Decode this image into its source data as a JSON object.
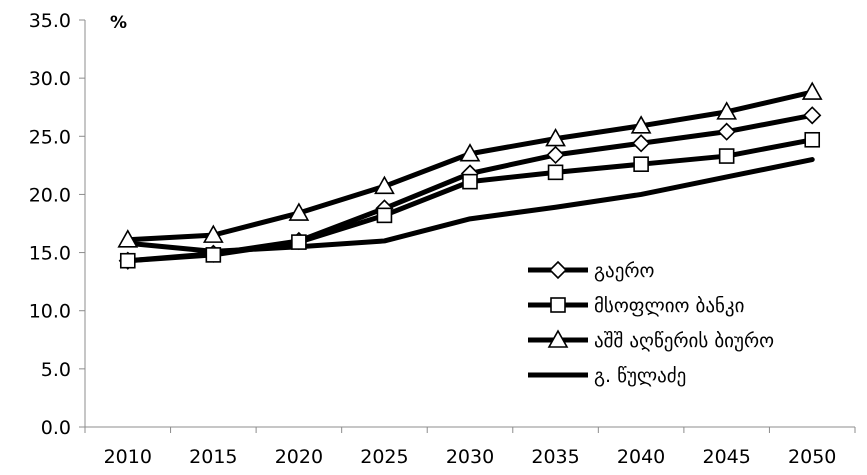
{
  "chart_data": {
    "type": "line",
    "ylabel": "%",
    "ylim": [
      0,
      35
    ],
    "yticks": [
      "0.0",
      "5.0",
      "10.0",
      "15.0",
      "20.0",
      "25.0",
      "30.0",
      "35.0"
    ],
    "x": [
      "2010",
      "2015",
      "2020",
      "2025",
      "2030",
      "2035",
      "2040",
      "2045",
      "2050"
    ],
    "grid": false,
    "legend_position": "right",
    "series": [
      {
        "name": "გაერო",
        "marker": "diamond",
        "values": [
          14.3,
          14.9,
          16.0,
          18.8,
          21.8,
          23.4,
          24.4,
          25.4,
          26.8
        ]
      },
      {
        "name": "მსოფლიო ბანკი",
        "marker": "square",
        "values": [
          14.3,
          14.8,
          15.9,
          18.2,
          21.1,
          21.9,
          22.6,
          23.3,
          24.7
        ]
      },
      {
        "name": "აშშ აღწერის ბიურო",
        "marker": "triangle",
        "values": [
          16.1,
          16.5,
          18.4,
          20.7,
          23.5,
          24.8,
          25.9,
          27.1,
          28.8
        ]
      },
      {
        "name": "გ. წულაძე",
        "marker": "none",
        "values": [
          15.8,
          15.1,
          15.5,
          16.0,
          17.9,
          18.9,
          20.0,
          21.5,
          23.0
        ]
      }
    ]
  }
}
